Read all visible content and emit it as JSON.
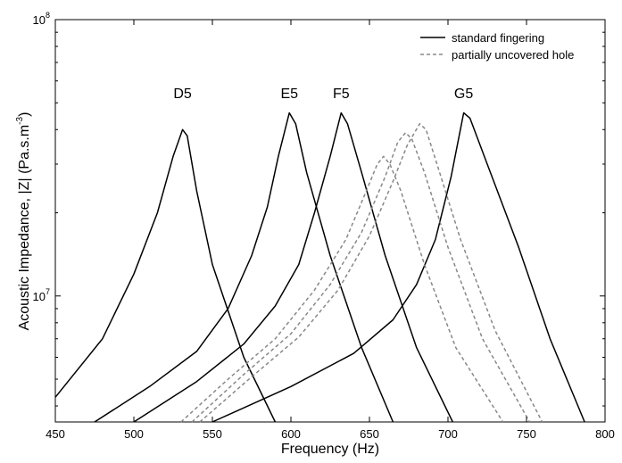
{
  "chart_data": {
    "type": "line",
    "xlabel": "Frequency (Hz)",
    "ylabel": "Acoustic Impedance, |Z| (Pa.s.m",
    "ylabel_exponent": "-3",
    "ylabel_close": ")",
    "xlim": [
      450,
      800
    ],
    "ylim": [
      3500000,
      100000000
    ],
    "y_scale": "log",
    "x_ticks": [
      450,
      500,
      550,
      600,
      650,
      700,
      750,
      800
    ],
    "x_tick_labels": [
      "450",
      "500",
      "550",
      "600",
      "650",
      "700",
      "750",
      "800"
    ],
    "y_ticks": [
      {
        "value": 10000000,
        "base": "10",
        "exp": "7"
      },
      {
        "value": 100000000,
        "base": "10",
        "exp": "8"
      }
    ],
    "grid": false,
    "legend": {
      "placement": "top-right",
      "entries": [
        {
          "label": "standard fingering",
          "style": "solid",
          "color": "#000000"
        },
        {
          "label": "partially uncovered hole",
          "style": "dashed",
          "color": "#888888"
        }
      ]
    },
    "series": [
      {
        "name": "D5",
        "style": "solid",
        "color": "#000000",
        "x": [
          450,
          480,
          500,
          515,
          525,
          531,
          534,
          540,
          550,
          570,
          590
        ],
        "y": [
          4300000,
          7000000,
          12000000,
          20000000,
          32000000,
          40000000,
          38000000,
          24000000,
          13000000,
          6000000,
          3500000
        ]
      },
      {
        "name": "E5",
        "style": "solid",
        "color": "#000000",
        "x": [
          475,
          510,
          540,
          560,
          575,
          585,
          592,
          599,
          603,
          610,
          625,
          645,
          665
        ],
        "y": [
          3500000,
          4700000,
          6300000,
          9000000,
          14000000,
          21000000,
          32000000,
          46000000,
          42000000,
          28000000,
          14000000,
          6500000,
          3500000
        ]
      },
      {
        "name": "F5",
        "style": "solid",
        "color": "#000000",
        "x": [
          500,
          540,
          570,
          590,
          605,
          615,
          625,
          632,
          636,
          645,
          660,
          680,
          703
        ],
        "y": [
          3500000,
          4900000,
          6700000,
          9200000,
          13000000,
          20000000,
          32000000,
          46000000,
          42000000,
          28000000,
          14000000,
          6500000,
          3500000
        ]
      },
      {
        "name": "G5",
        "style": "solid",
        "color": "#000000",
        "x": [
          550,
          600,
          640,
          665,
          680,
          692,
          702,
          710,
          714,
          725,
          745,
          765,
          787
        ],
        "y": [
          3500000,
          4700000,
          6200000,
          8200000,
          11000000,
          16000000,
          27000000,
          46000000,
          44000000,
          30000000,
          15000000,
          7000000,
          3500000
        ]
      },
      {
        "style": "dashed",
        "color": "#888888",
        "x": [
          530,
          560,
          590,
          615,
          635,
          648,
          655,
          659,
          663,
          670,
          685,
          705,
          735
        ],
        "y": [
          3500000,
          5000000,
          7000000,
          10500000,
          16000000,
          24000000,
          30000000,
          32000000,
          30000000,
          24000000,
          13000000,
          6500000,
          3500000
        ]
      },
      {
        "style": "dashed",
        "color": "#888888",
        "x": [
          537,
          570,
          600,
          625,
          645,
          660,
          668,
          673,
          677,
          685,
          700,
          722,
          752
        ],
        "y": [
          3500000,
          5200000,
          7300000,
          11000000,
          17000000,
          27000000,
          36000000,
          39000000,
          37000000,
          28000000,
          15000000,
          7000000,
          3500000
        ]
      },
      {
        "style": "dashed",
        "color": "#888888",
        "x": [
          542,
          575,
          605,
          630,
          650,
          665,
          674,
          682,
          686,
          693,
          708,
          730,
          760
        ],
        "y": [
          3500000,
          5100000,
          7100000,
          10500000,
          16500000,
          26000000,
          35000000,
          42000000,
          40000000,
          30000000,
          16000000,
          7500000,
          3500000
        ]
      }
    ]
  }
}
